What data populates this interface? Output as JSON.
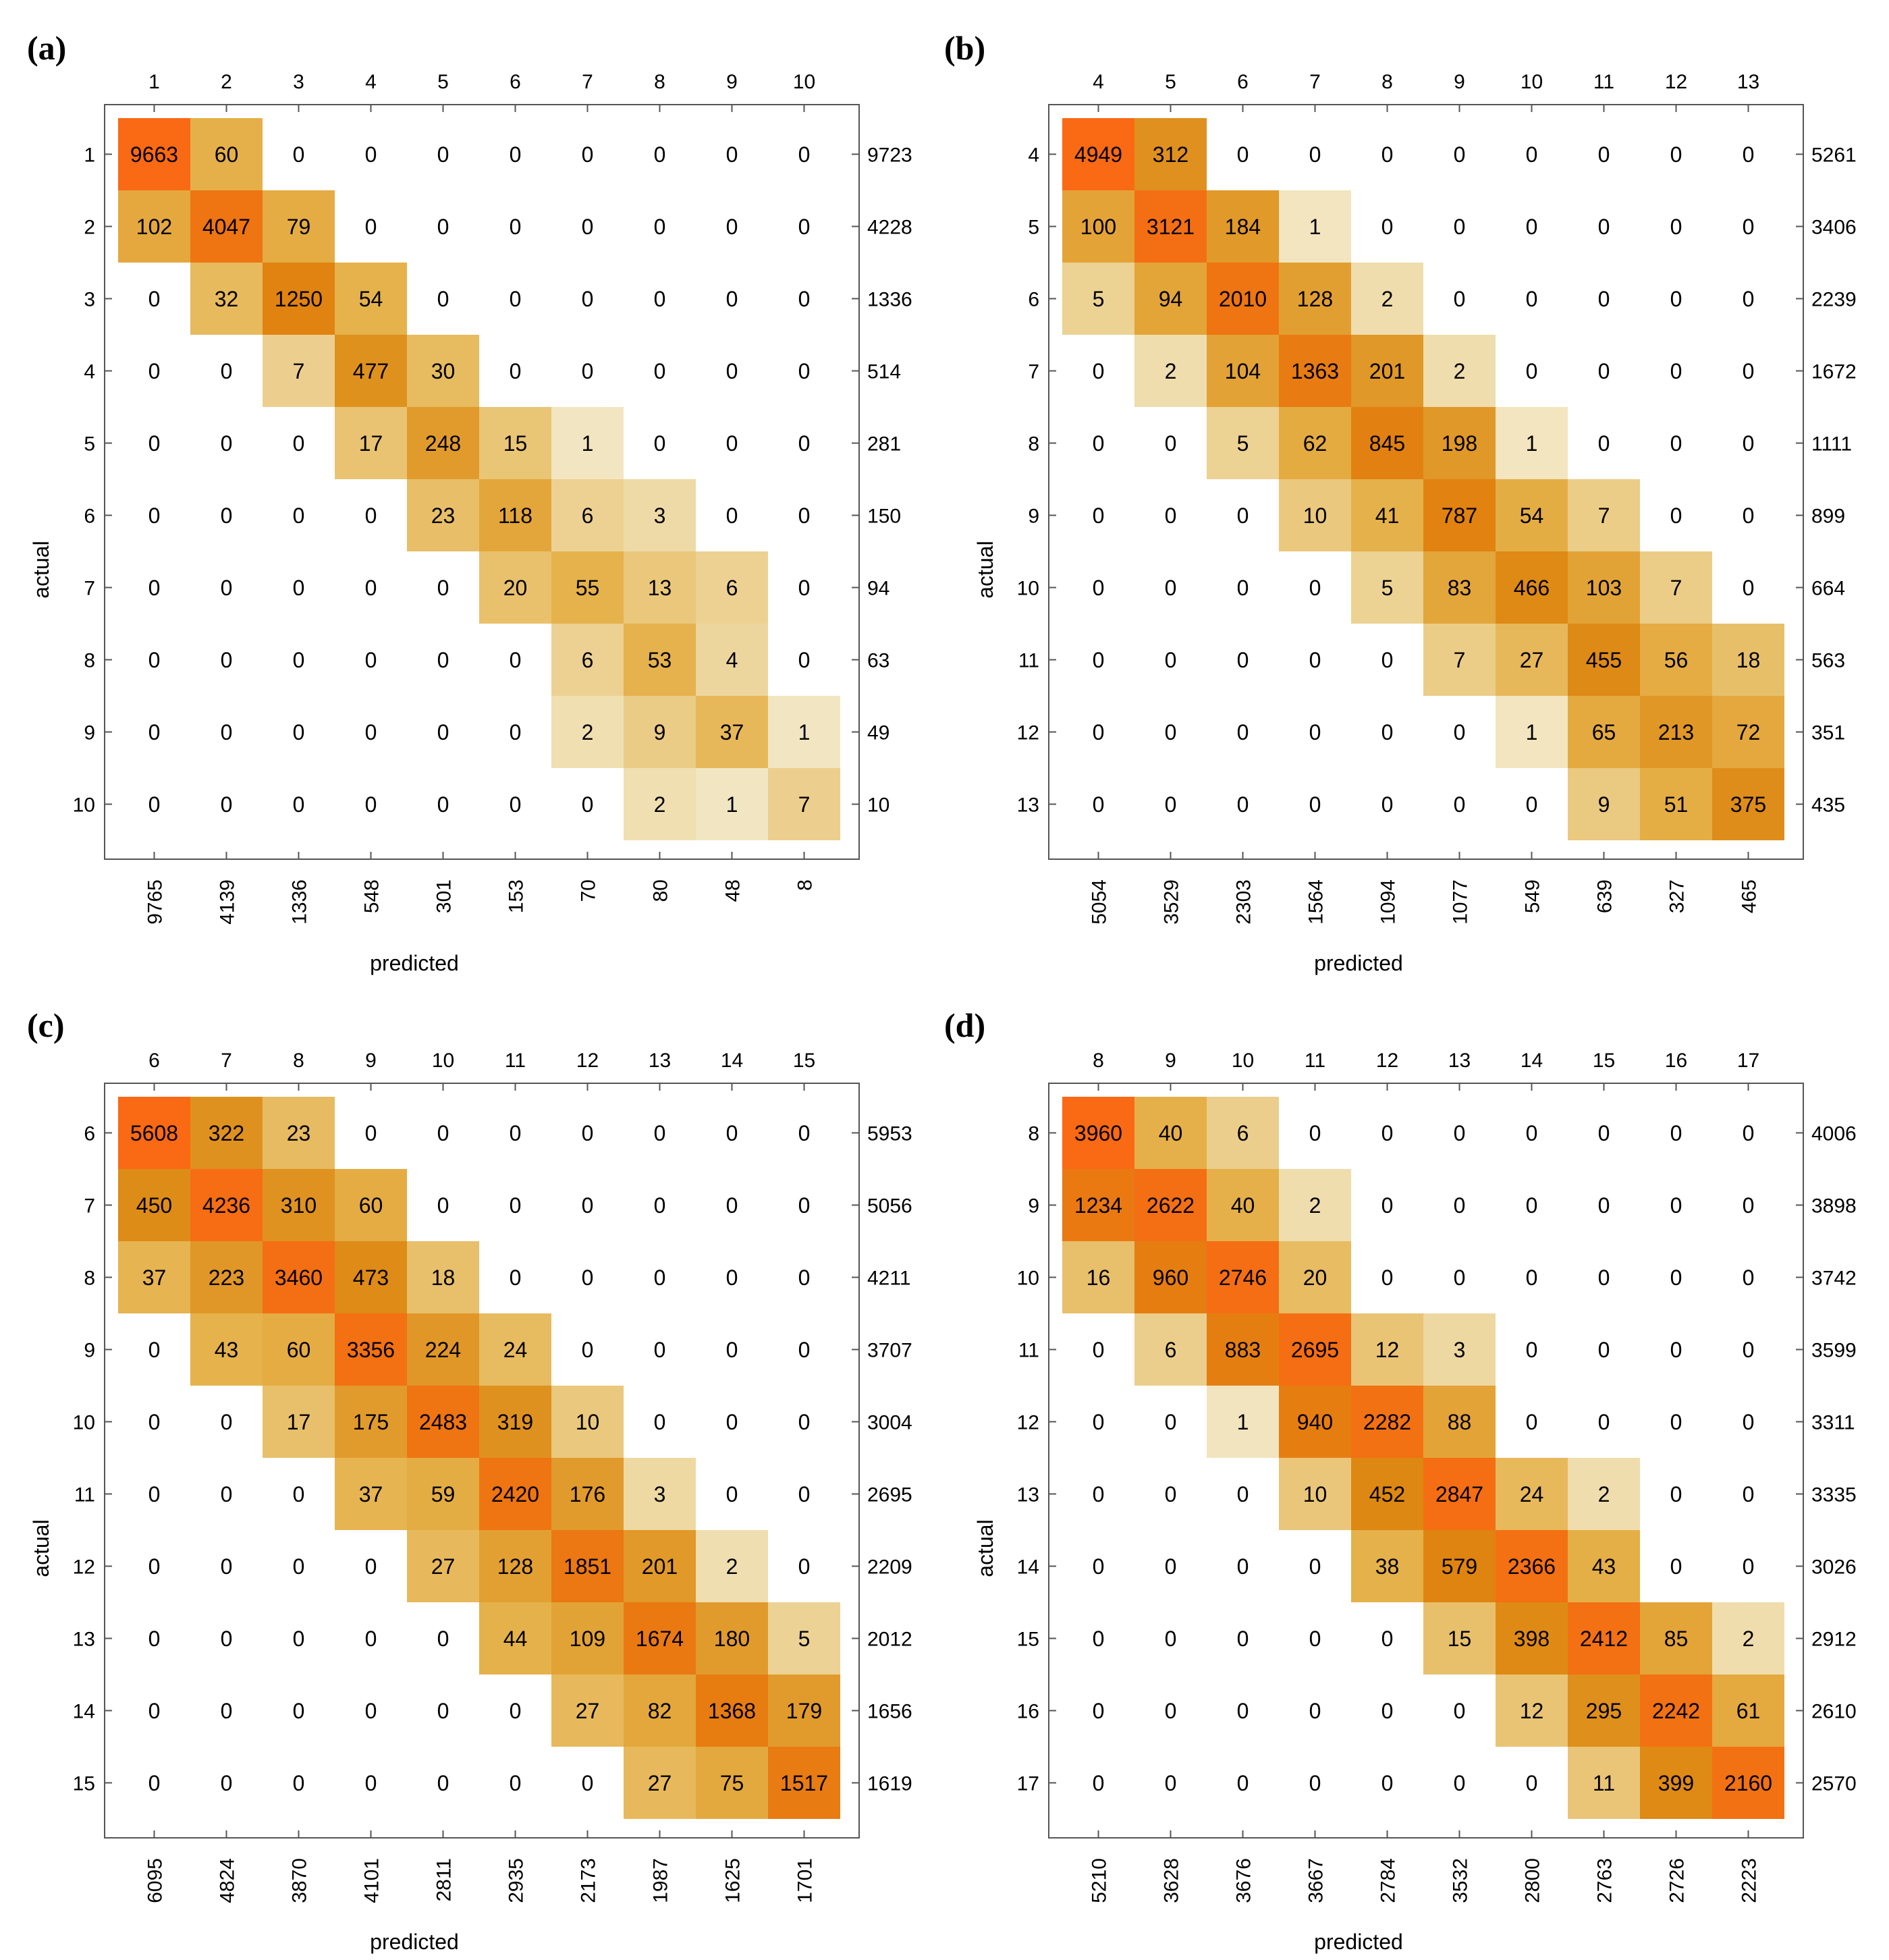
{
  "chart_data": [
    {
      "panel_label": "(a)",
      "type": "heatmap",
      "x_categories": [
        "1",
        "2",
        "3",
        "4",
        "5",
        "6",
        "7",
        "8",
        "9",
        "10"
      ],
      "y_categories": [
        "1",
        "2",
        "3",
        "4",
        "5",
        "6",
        "7",
        "8",
        "9",
        "10"
      ],
      "xlabel": "predicted",
      "ylabel": "actual",
      "values": [
        [
          9663,
          60,
          0,
          0,
          0,
          0,
          0,
          0,
          0,
          0
        ],
        [
          102,
          4047,
          79,
          0,
          0,
          0,
          0,
          0,
          0,
          0
        ],
        [
          0,
          32,
          1250,
          54,
          0,
          0,
          0,
          0,
          0,
          0
        ],
        [
          0,
          0,
          7,
          477,
          30,
          0,
          0,
          0,
          0,
          0
        ],
        [
          0,
          0,
          0,
          17,
          248,
          15,
          1,
          0,
          0,
          0
        ],
        [
          0,
          0,
          0,
          0,
          23,
          118,
          6,
          3,
          0,
          0
        ],
        [
          0,
          0,
          0,
          0,
          0,
          20,
          55,
          13,
          6,
          0
        ],
        [
          0,
          0,
          0,
          0,
          0,
          0,
          6,
          53,
          4,
          0
        ],
        [
          0,
          0,
          0,
          0,
          0,
          0,
          2,
          9,
          37,
          1
        ],
        [
          0,
          0,
          0,
          0,
          0,
          0,
          0,
          2,
          1,
          7
        ]
      ],
      "row_totals": [
        "9723",
        "4228",
        "1336",
        "514",
        "281",
        "150",
        "94",
        "63",
        "49",
        "10"
      ],
      "col_totals": [
        "9765",
        "4139",
        "1336",
        "548",
        "301",
        "153",
        "70",
        "80",
        "48",
        "8"
      ]
    },
    {
      "panel_label": "(b)",
      "type": "heatmap",
      "x_categories": [
        "4",
        "5",
        "6",
        "7",
        "8",
        "9",
        "10",
        "11",
        "12",
        "13"
      ],
      "y_categories": [
        "4",
        "5",
        "6",
        "7",
        "8",
        "9",
        "10",
        "11",
        "12",
        "13"
      ],
      "xlabel": "predicted",
      "ylabel": "actual",
      "values": [
        [
          4949,
          312,
          0,
          0,
          0,
          0,
          0,
          0,
          0,
          0
        ],
        [
          100,
          3121,
          184,
          1,
          0,
          0,
          0,
          0,
          0,
          0
        ],
        [
          5,
          94,
          2010,
          128,
          2,
          0,
          0,
          0,
          0,
          0
        ],
        [
          0,
          2,
          104,
          1363,
          201,
          2,
          0,
          0,
          0,
          0
        ],
        [
          0,
          0,
          5,
          62,
          845,
          198,
          1,
          0,
          0,
          0
        ],
        [
          0,
          0,
          0,
          10,
          41,
          787,
          54,
          7,
          0,
          0
        ],
        [
          0,
          0,
          0,
          0,
          5,
          83,
          466,
          103,
          7,
          0
        ],
        [
          0,
          0,
          0,
          0,
          0,
          7,
          27,
          455,
          56,
          18
        ],
        [
          0,
          0,
          0,
          0,
          0,
          0,
          1,
          65,
          213,
          72
        ],
        [
          0,
          0,
          0,
          0,
          0,
          0,
          0,
          9,
          51,
          375
        ]
      ],
      "row_totals": [
        "5261",
        "3406",
        "2239",
        "1672",
        "1111",
        "899",
        "664",
        "563",
        "351",
        "435"
      ],
      "col_totals": [
        "5054",
        "3529",
        "2303",
        "1564",
        "1094",
        "1077",
        "549",
        "639",
        "327",
        "465"
      ]
    },
    {
      "panel_label": "(c)",
      "type": "heatmap",
      "x_categories": [
        "6",
        "7",
        "8",
        "9",
        "10",
        "11",
        "12",
        "13",
        "14",
        "15"
      ],
      "y_categories": [
        "6",
        "7",
        "8",
        "9",
        "10",
        "11",
        "12",
        "13",
        "14",
        "15"
      ],
      "xlabel": "predicted",
      "ylabel": "actual",
      "values": [
        [
          5608,
          322,
          23,
          0,
          0,
          0,
          0,
          0,
          0,
          0
        ],
        [
          450,
          4236,
          310,
          60,
          0,
          0,
          0,
          0,
          0,
          0
        ],
        [
          37,
          223,
          3460,
          473,
          18,
          0,
          0,
          0,
          0,
          0
        ],
        [
          0,
          43,
          60,
          3356,
          224,
          24,
          0,
          0,
          0,
          0
        ],
        [
          0,
          0,
          17,
          175,
          2483,
          319,
          10,
          0,
          0,
          0
        ],
        [
          0,
          0,
          0,
          37,
          59,
          2420,
          176,
          3,
          0,
          0
        ],
        [
          0,
          0,
          0,
          0,
          27,
          128,
          1851,
          201,
          2,
          0
        ],
        [
          0,
          0,
          0,
          0,
          0,
          44,
          109,
          1674,
          180,
          5
        ],
        [
          0,
          0,
          0,
          0,
          0,
          0,
          27,
          82,
          1368,
          179
        ],
        [
          0,
          0,
          0,
          0,
          0,
          0,
          0,
          27,
          75,
          1517
        ]
      ],
      "row_totals": [
        "5953",
        "5056",
        "4211",
        "3707",
        "3004",
        "2695",
        "2209",
        "2012",
        "1656",
        "1619"
      ],
      "col_totals": [
        "6095",
        "4824",
        "3870",
        "4101",
        "2811",
        "2935",
        "2173",
        "1987",
        "1625",
        "1701"
      ]
    },
    {
      "panel_label": "(d)",
      "type": "heatmap",
      "x_categories": [
        "8",
        "9",
        "10",
        "11",
        "12",
        "13",
        "14",
        "15",
        "16",
        "17"
      ],
      "y_categories": [
        "8",
        "9",
        "10",
        "11",
        "12",
        "13",
        "14",
        "15",
        "16",
        "17"
      ],
      "xlabel": "predicted",
      "ylabel": "actual",
      "values": [
        [
          3960,
          40,
          6,
          0,
          0,
          0,
          0,
          0,
          0,
          0
        ],
        [
          1234,
          2622,
          40,
          2,
          0,
          0,
          0,
          0,
          0,
          0
        ],
        [
          16,
          960,
          2746,
          20,
          0,
          0,
          0,
          0,
          0,
          0
        ],
        [
          0,
          6,
          883,
          2695,
          12,
          3,
          0,
          0,
          0,
          0
        ],
        [
          0,
          0,
          1,
          940,
          2282,
          88,
          0,
          0,
          0,
          0
        ],
        [
          0,
          0,
          0,
          10,
          452,
          2847,
          24,
          2,
          0,
          0
        ],
        [
          0,
          0,
          0,
          0,
          38,
          579,
          2366,
          43,
          0,
          0
        ],
        [
          0,
          0,
          0,
          0,
          0,
          15,
          398,
          2412,
          85,
          2
        ],
        [
          0,
          0,
          0,
          0,
          0,
          0,
          12,
          295,
          2242,
          61
        ],
        [
          0,
          0,
          0,
          0,
          0,
          0,
          0,
          11,
          399,
          2160
        ]
      ],
      "row_totals": [
        "4006",
        "3898",
        "3742",
        "3599",
        "3311",
        "3335",
        "3026",
        "2912",
        "2610",
        "2570"
      ],
      "col_totals": [
        "5210",
        "3628",
        "3676",
        "3667",
        "2784",
        "3532",
        "2800",
        "2763",
        "2726",
        "2223"
      ]
    }
  ]
}
